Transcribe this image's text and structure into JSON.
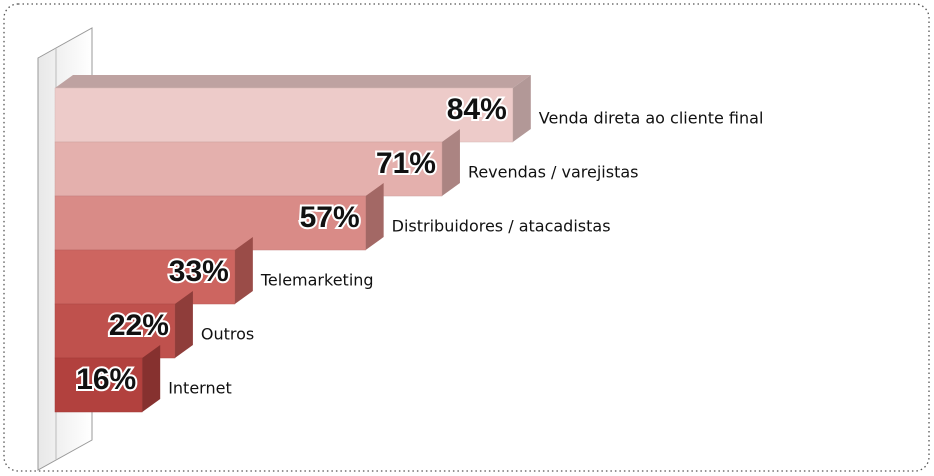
{
  "chart_data": {
    "type": "bar",
    "categories": [
      "Venda direta ao cliente final",
      "Revendas / varejistas",
      "Distribuidores / atacadistas",
      "Telemarketing",
      "Outros",
      "Internet"
    ],
    "values": [
      84,
      71,
      57,
      33,
      22,
      16
    ],
    "value_labels": [
      "84%",
      "71%",
      "57%",
      "33%",
      "22%",
      "16%"
    ],
    "colors": [
      "#edcbc9",
      "#e4b0ad",
      "#d98b87",
      "#cd6560",
      "#bf514d",
      "#b2413e"
    ]
  }
}
